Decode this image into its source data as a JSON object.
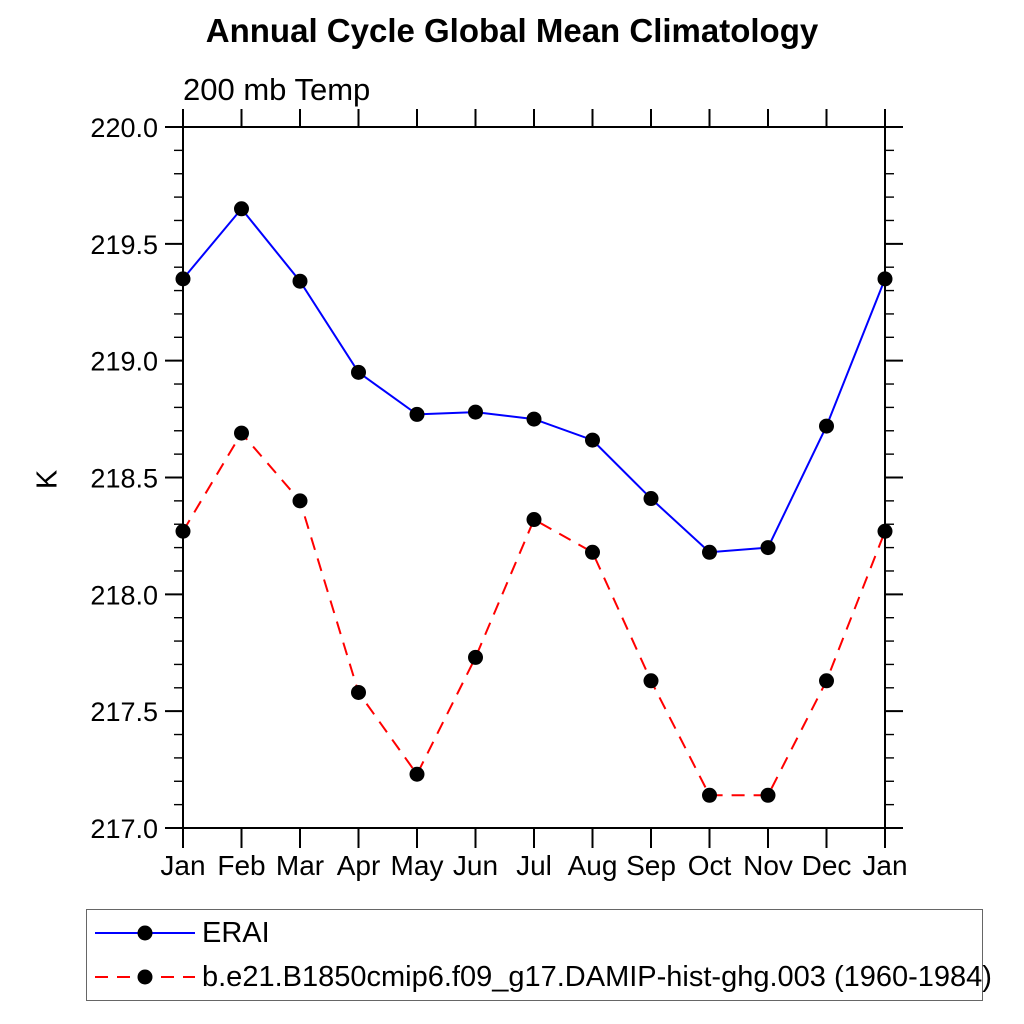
{
  "header": {
    "title": "Annual Cycle Global Mean Climatology"
  },
  "chart_data": {
    "type": "line",
    "title": "Annual Cycle Global Mean Climatology",
    "left_string": "200 mb Temp",
    "ylabel": "K",
    "xlabel": "",
    "categories": [
      "Jan",
      "Feb",
      "Mar",
      "Apr",
      "May",
      "Jun",
      "Jul",
      "Aug",
      "Sep",
      "Oct",
      "Nov",
      "Dec",
      "Jan"
    ],
    "ylim": [
      217.0,
      220.0
    ],
    "ytick_major_step": 0.5,
    "ytick_minor_step": 0.1,
    "grid": false,
    "legend_position": "bottom-left-boxed",
    "axis_color": "#000000",
    "marker_color": "#000000",
    "marker_shape": "filled-circle",
    "series": [
      {
        "name": "ERAI",
        "color": "#0000ff",
        "line_style": "solid",
        "values": [
          219.35,
          219.65,
          219.34,
          218.95,
          218.77,
          218.78,
          218.75,
          218.66,
          218.41,
          218.18,
          218.2,
          218.72,
          219.35
        ]
      },
      {
        "name": "b.e21.B1850cmip6.f09_g17.DAMIP-hist-ghg.003 (1960-1984)",
        "color": "#ff0000",
        "line_style": "dashed",
        "values": [
          218.27,
          218.69,
          218.4,
          217.58,
          217.23,
          217.73,
          218.32,
          218.18,
          217.63,
          217.14,
          217.14,
          217.63,
          218.27
        ]
      }
    ]
  }
}
